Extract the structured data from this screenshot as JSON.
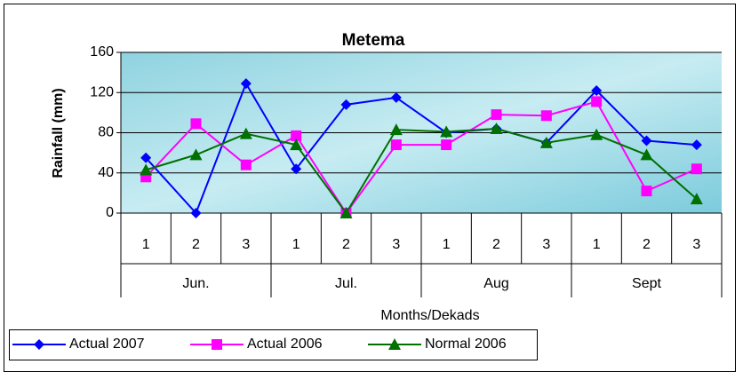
{
  "chart_data": {
    "type": "line",
    "title": "Metema",
    "y_label": "Rainfall (mm)",
    "x_label": "Months/Dekads",
    "categories": [
      "1",
      "2",
      "3",
      "1",
      "2",
      "3",
      "1",
      "2",
      "3",
      "1",
      "2",
      "3"
    ],
    "group_labels": [
      "Jun.",
      "Jul.",
      "Aug",
      "Sept"
    ],
    "series": [
      {
        "name": "Actual 2007",
        "color": "#0000ff",
        "marker": "diamond",
        "values": [
          55,
          0,
          129,
          44,
          108,
          115,
          80,
          84,
          70,
          122,
          72,
          68
        ]
      },
      {
        "name": "Actual 2006",
        "color": "#ff00ff",
        "marker": "square",
        "values": [
          36,
          89,
          48,
          77,
          0,
          68,
          68,
          98,
          97,
          111,
          22,
          44
        ]
      },
      {
        "name": "Normal 2006",
        "color": "#007000",
        "marker": "triangle",
        "values": [
          43,
          58,
          79,
          68,
          0,
          83,
          81,
          84,
          70,
          78,
          58,
          14
        ]
      }
    ],
    "ylim": [
      0,
      160
    ],
    "yticks": [
      0,
      40,
      80,
      120,
      160
    ],
    "grid": true,
    "legend": "bottom-left"
  }
}
